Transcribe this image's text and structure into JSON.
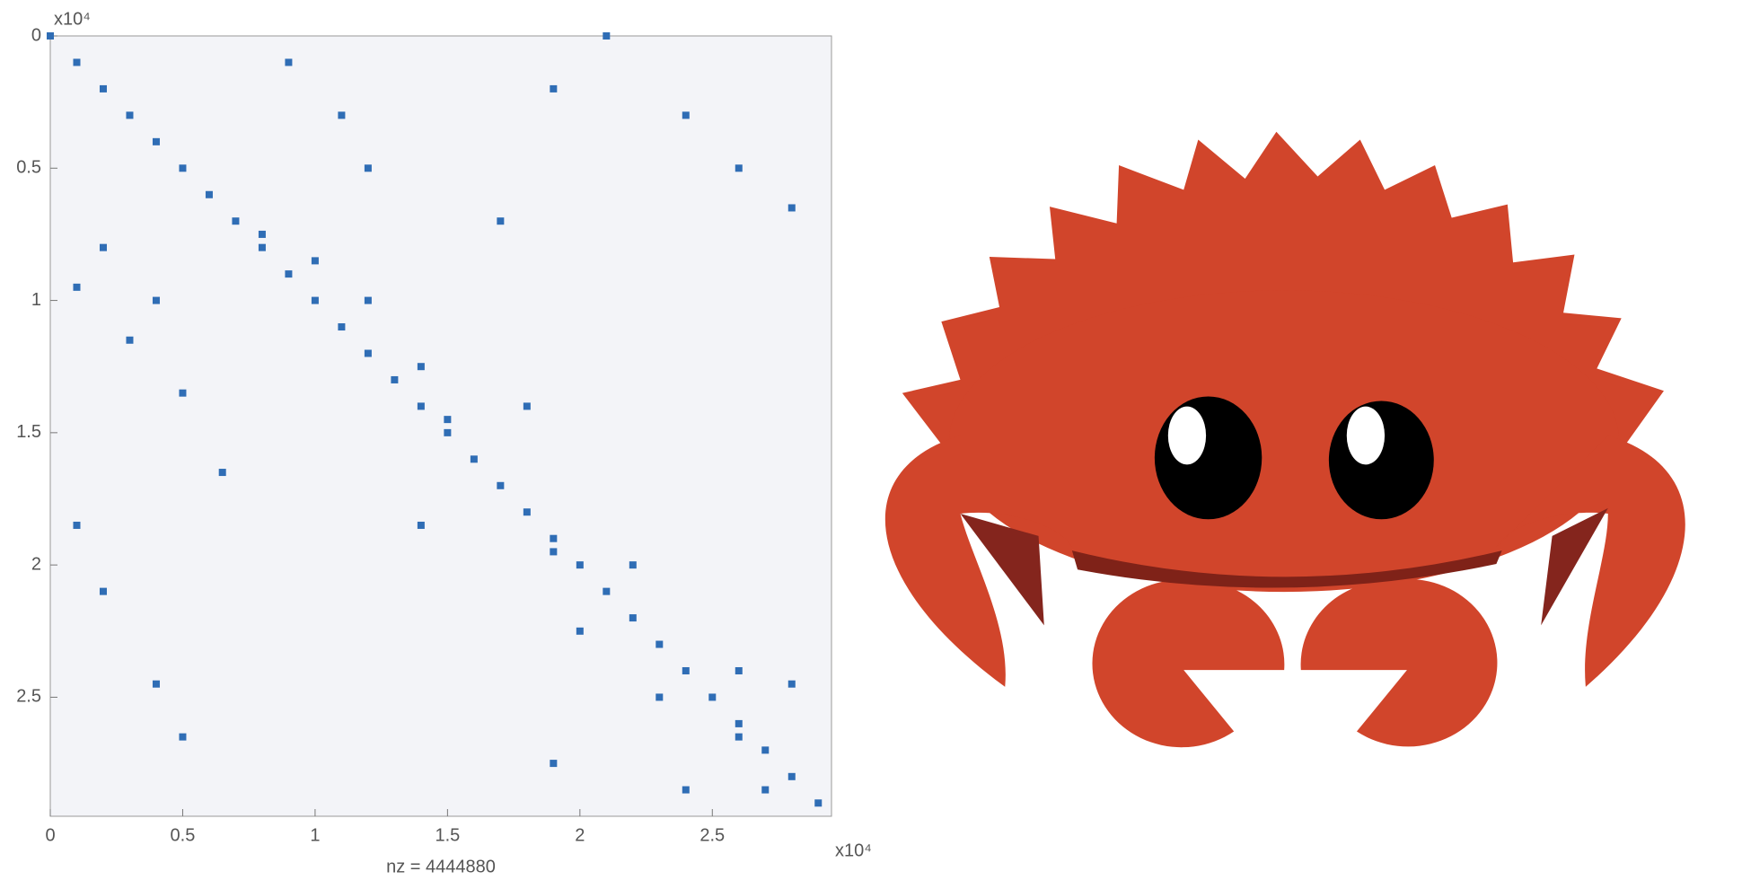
{
  "chart_data": {
    "type": "spy",
    "xlabel": "nz = 4444880",
    "x_scale_label": "x10⁴",
    "y_scale_label": "x10⁴",
    "color": "#2f6db5",
    "xlim": [
      0,
      29500
    ],
    "ylim": [
      29500,
      0
    ],
    "xticks": [
      {
        "value": 0,
        "label": "0"
      },
      {
        "value": 5000,
        "label": "0.5"
      },
      {
        "value": 10000,
        "label": "1"
      },
      {
        "value": 15000,
        "label": "1.5"
      },
      {
        "value": 20000,
        "label": "2"
      },
      {
        "value": 25000,
        "label": "2.5"
      }
    ],
    "yticks": [
      {
        "value": 0,
        "label": "0"
      },
      {
        "value": 5000,
        "label": "0.5"
      },
      {
        "value": 10000,
        "label": "1"
      },
      {
        "value": 15000,
        "label": "1.5"
      },
      {
        "value": 20000,
        "label": "2"
      },
      {
        "value": 25000,
        "label": "2.5"
      }
    ],
    "x": [
      0,
      1000,
      2000,
      3000,
      4000,
      5000,
      6000,
      7000,
      8000,
      9000,
      10000,
      11000,
      12000,
      13000,
      14000,
      15000,
      16000,
      17000,
      18000,
      19000,
      20000,
      21000,
      22000,
      23000,
      24000,
      25000,
      26000,
      27000,
      28000,
      29000,
      9000,
      11000,
      12000,
      17000,
      19000,
      21000,
      24000,
      26000,
      28000,
      2000,
      1000,
      4000,
      3000,
      5000,
      6500,
      1000,
      2000,
      4000,
      5000,
      8000,
      10000,
      12000,
      14000,
      15000,
      18000,
      14000,
      19000,
      22000,
      20000,
      23000,
      26000,
      28000,
      19000,
      24000,
      26000,
      27000
    ],
    "y": [
      0,
      1000,
      2000,
      3000,
      4000,
      5000,
      6000,
      7000,
      8000,
      9000,
      10000,
      11000,
      12000,
      13000,
      14000,
      15000,
      16000,
      17000,
      18000,
      19000,
      20000,
      21000,
      22000,
      23000,
      24000,
      25000,
      26000,
      27000,
      28000,
      29000,
      1000,
      3000,
      5000,
      7000,
      2000,
      0,
      3000,
      5000,
      6500,
      8000,
      9500,
      10000,
      11500,
      13500,
      16500,
      18500,
      21000,
      24500,
      26500,
      7500,
      8500,
      10000,
      12500,
      14500,
      14000,
      18500,
      19500,
      20000,
      22500,
      25000,
      24000,
      24500,
      27500,
      28500,
      26500,
      28500
    ]
  }
}
